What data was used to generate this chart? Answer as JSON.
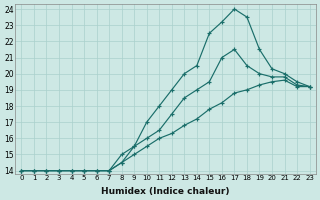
{
  "xlabel": "Humidex (Indice chaleur)",
  "bg_color": "#cde8e4",
  "grid_color": "#aad0cc",
  "line_color": "#1a6e6a",
  "xlim_min": -0.5,
  "xlim_max": 23.5,
  "ylim_min": 13.8,
  "ylim_max": 24.3,
  "yticks": [
    14,
    15,
    16,
    17,
    18,
    19,
    20,
    21,
    22,
    23,
    24
  ],
  "xticks": [
    0,
    1,
    2,
    3,
    4,
    5,
    6,
    7,
    8,
    9,
    10,
    11,
    12,
    13,
    14,
    15,
    16,
    17,
    18,
    19,
    20,
    21,
    22,
    23
  ],
  "series": [
    {
      "x": [
        0,
        1,
        2,
        3,
        4,
        5,
        6,
        7,
        8,
        9,
        10,
        11,
        12,
        13,
        14,
        15,
        16,
        17,
        18,
        19,
        20,
        21,
        22,
        23
      ],
      "y": [
        14,
        14,
        14,
        14,
        14,
        14,
        14,
        14,
        14.5,
        15.5,
        17,
        18,
        19,
        20,
        20.5,
        22.5,
        23.2,
        24.0,
        23.5,
        21.5,
        20.3,
        20.0,
        19.5,
        19.2
      ]
    },
    {
      "x": [
        0,
        1,
        2,
        3,
        4,
        5,
        6,
        7,
        8,
        9,
        10,
        11,
        12,
        13,
        14,
        15,
        16,
        17,
        18,
        19,
        20,
        21,
        22,
        23
      ],
      "y": [
        14,
        14,
        14,
        14,
        14,
        14,
        14,
        14,
        15,
        15.5,
        16,
        16.5,
        17.5,
        18.5,
        19.0,
        19.5,
        21.0,
        21.5,
        20.5,
        20.0,
        19.8,
        19.8,
        19.3,
        19.2
      ]
    },
    {
      "x": [
        0,
        1,
        2,
        3,
        4,
        5,
        6,
        7,
        8,
        9,
        10,
        11,
        12,
        13,
        14,
        15,
        16,
        17,
        18,
        19,
        20,
        21,
        22,
        23
      ],
      "y": [
        14,
        14,
        14,
        14,
        14,
        14,
        14,
        14,
        14.5,
        15,
        15.5,
        16,
        16.3,
        16.8,
        17.2,
        17.8,
        18.2,
        18.8,
        19.0,
        19.3,
        19.5,
        19.6,
        19.2,
        19.2
      ]
    }
  ]
}
